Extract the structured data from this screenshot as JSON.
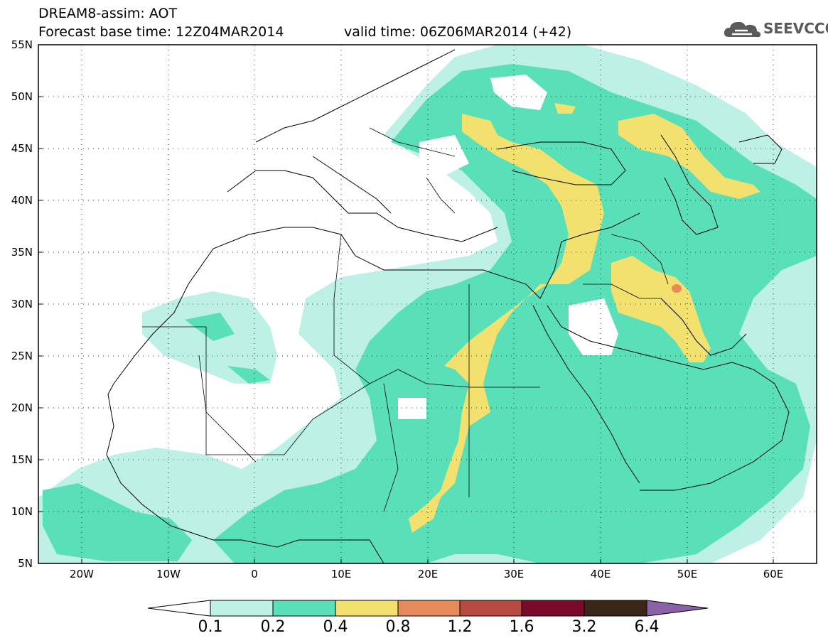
{
  "header": {
    "line1": "DREAM8-assim: AOT",
    "line2": "Forecast base time: 12Z04MAR2014",
    "line3": "valid time: 06Z06MAR2014 (+42)"
  },
  "logo": {
    "text": "SEEVCCC",
    "icon": "cloud-icon"
  },
  "map": {
    "lat_labels": [
      "55N",
      "50N",
      "45N",
      "40N",
      "35N",
      "30N",
      "25N",
      "20N",
      "15N",
      "10N",
      "5N"
    ],
    "lon_labels": [
      "20W",
      "10W",
      "0",
      "10E",
      "20E",
      "30E",
      "40E",
      "50E",
      "60E"
    ],
    "lat_range": [
      5,
      55
    ],
    "lon_range": [
      -25,
      65
    ],
    "grid": "dotted"
  },
  "colorbar": {
    "levels": [
      "0.1",
      "0.2",
      "0.4",
      "0.8",
      "1.2",
      "1.6",
      "3.2",
      "6.4"
    ],
    "colors": [
      "#bdf0e6",
      "#5ae0b9",
      "#f2e16e",
      "#e98a5c",
      "#b64a40",
      "#7a0a2a",
      "#3a2518",
      "#8a62a8"
    ],
    "placement": "bottom"
  }
}
